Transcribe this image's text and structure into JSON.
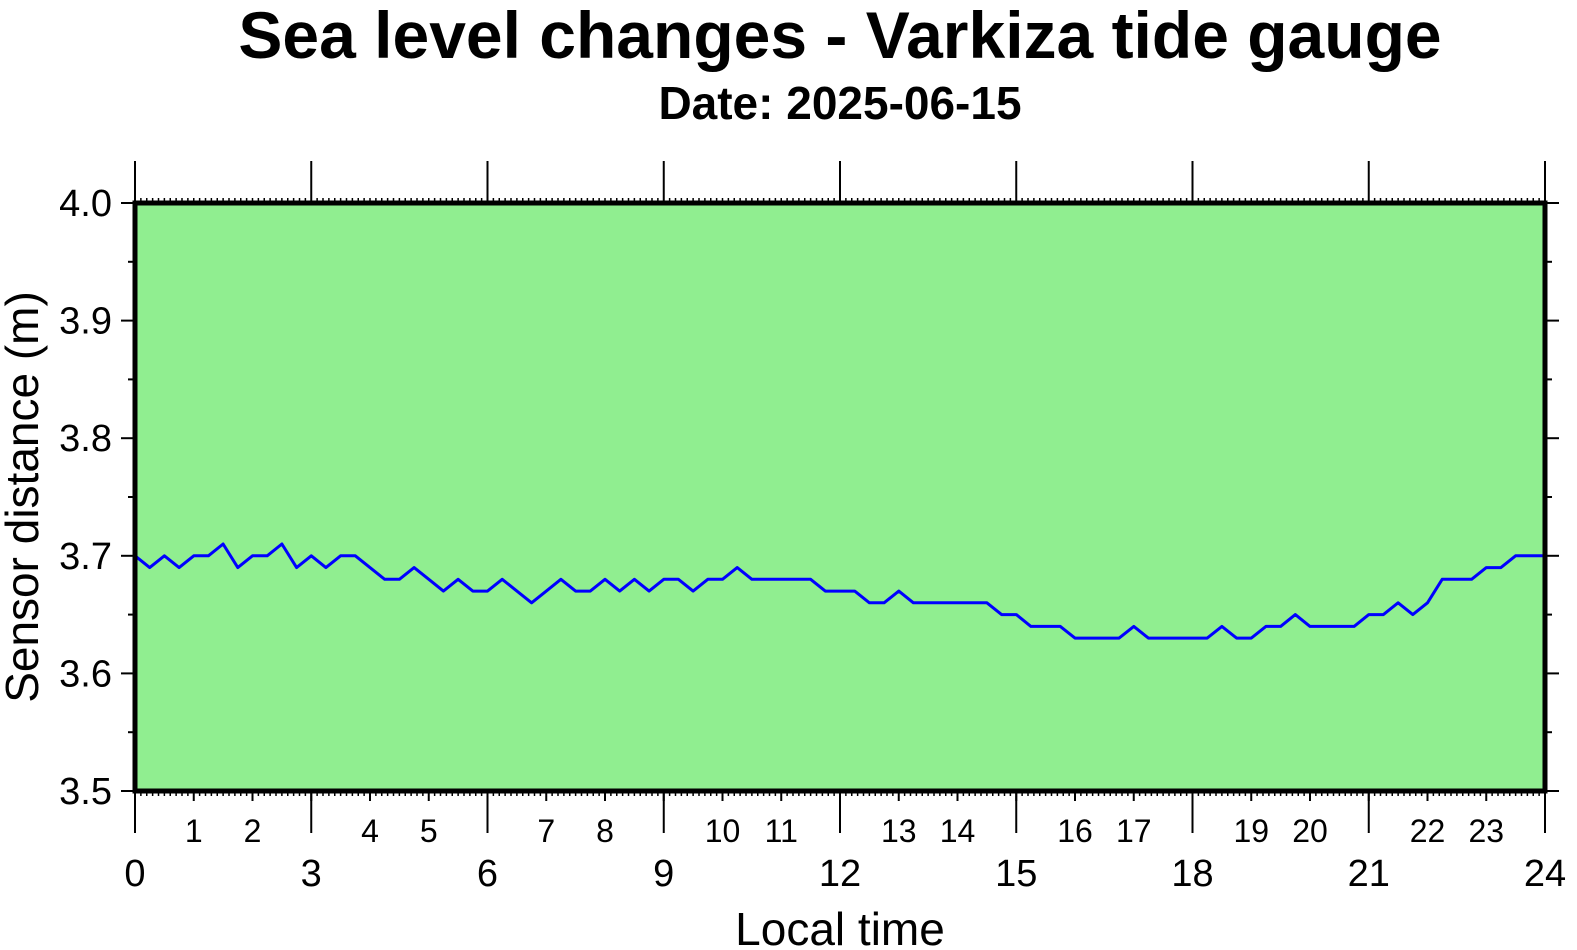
{
  "colors": {
    "plot_background": "#90EE90",
    "series_line": "#0000FF",
    "frame": "#000000"
  },
  "chart_data": {
    "type": "line",
    "title": "Sea level changes - Varkiza tide gauge",
    "subtitle": "Date: 2025-06-15",
    "xlabel": "Local time",
    "ylabel": "Sensor distance (m)",
    "xlim": [
      0,
      24
    ],
    "ylim": [
      3.5,
      4.0
    ],
    "x_major_ticks": [
      0,
      3,
      6,
      9,
      12,
      15,
      18,
      21,
      24
    ],
    "x_minor_labels": [
      1,
      2,
      4,
      5,
      7,
      8,
      10,
      11,
      13,
      14,
      16,
      17,
      19,
      20,
      22,
      23
    ],
    "y_ticks": [
      "3.5",
      "3.6",
      "3.7",
      "3.8",
      "3.9",
      "4.0"
    ],
    "grid": false,
    "series": [
      {
        "x": [
          0.0,
          0.25,
          0.5,
          0.75,
          1.0,
          1.25,
          1.5,
          1.75,
          2.0,
          2.25,
          2.5,
          2.75,
          3.0,
          3.25,
          3.5,
          3.75,
          4.0,
          4.25,
          4.5,
          4.75,
          5.0,
          5.25,
          5.5,
          5.75,
          6.0,
          6.25,
          6.5,
          6.75,
          7.0,
          7.25,
          7.5,
          7.75,
          8.0,
          8.25,
          8.5,
          8.75,
          9.0,
          9.25,
          9.5,
          9.75,
          10.0,
          10.25,
          10.5,
          10.75,
          11.0,
          11.25,
          11.5,
          11.75,
          12.0,
          12.25,
          12.5,
          12.75,
          13.0,
          13.25,
          13.5,
          13.75,
          14.0,
          14.25,
          14.5,
          14.75,
          15.0,
          15.25,
          15.5,
          15.75,
          16.0,
          16.25,
          16.5,
          16.75,
          17.0,
          17.25,
          17.5,
          17.75,
          18.0,
          18.25,
          18.5,
          18.75,
          19.0,
          19.25,
          19.5,
          19.75,
          20.0,
          20.25,
          20.5,
          20.75,
          21.0,
          21.25,
          21.5,
          21.75,
          22.0,
          22.25,
          22.5,
          22.75,
          23.0,
          23.25,
          23.5,
          23.75,
          24.0
        ],
        "values": [
          3.7,
          3.69,
          3.7,
          3.69,
          3.7,
          3.7,
          3.71,
          3.69,
          3.7,
          3.7,
          3.71,
          3.69,
          3.7,
          3.69,
          3.7,
          3.7,
          3.69,
          3.68,
          3.68,
          3.69,
          3.68,
          3.67,
          3.68,
          3.67,
          3.67,
          3.68,
          3.67,
          3.66,
          3.67,
          3.68,
          3.67,
          3.67,
          3.68,
          3.67,
          3.68,
          3.67,
          3.68,
          3.68,
          3.67,
          3.68,
          3.68,
          3.69,
          3.68,
          3.68,
          3.68,
          3.68,
          3.68,
          3.67,
          3.67,
          3.67,
          3.66,
          3.66,
          3.67,
          3.66,
          3.66,
          3.66,
          3.66,
          3.66,
          3.66,
          3.65,
          3.65,
          3.64,
          3.64,
          3.64,
          3.63,
          3.63,
          3.63,
          3.63,
          3.64,
          3.63,
          3.63,
          3.63,
          3.63,
          3.63,
          3.64,
          3.63,
          3.63,
          3.64,
          3.64,
          3.65,
          3.64,
          3.64,
          3.64,
          3.64,
          3.65,
          3.65,
          3.66,
          3.65,
          3.66,
          3.68,
          3.68,
          3.68,
          3.69,
          3.69,
          3.7,
          3.7,
          3.7
        ]
      }
    ]
  }
}
